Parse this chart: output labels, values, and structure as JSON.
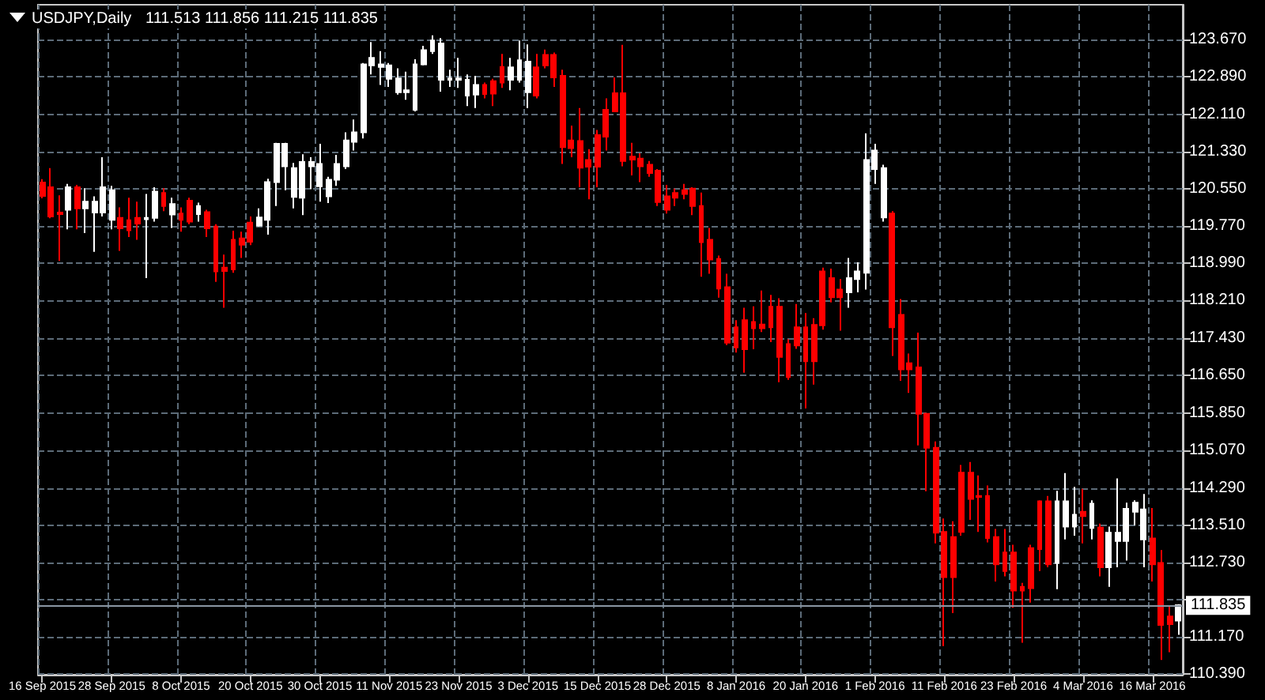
{
  "chart_data": {
    "type": "candlestick",
    "title": "USDJPY,Daily",
    "subtitle": "111.513 111.856 111.215 111.835",
    "categories": [
      "16 Sep 2015",
      null,
      null,
      null,
      null,
      null,
      null,
      null,
      "28 Sep 2015",
      null,
      null,
      null,
      null,
      null,
      null,
      null,
      "8 Oct 2015",
      null,
      null,
      null,
      null,
      null,
      null,
      null,
      "20 Oct 2015",
      null,
      null,
      null,
      null,
      null,
      null,
      null,
      "30 Oct 2015",
      null,
      null,
      null,
      null,
      null,
      null,
      null,
      "11 Nov 2015",
      null,
      null,
      null,
      null,
      null,
      null,
      null,
      "23 Nov 2015",
      null,
      null,
      null,
      null,
      null,
      null,
      null,
      "3 Dec 2015",
      null,
      null,
      null,
      null,
      null,
      null,
      null,
      "15 Dec 2015",
      null,
      null,
      null,
      null,
      null,
      null,
      null,
      "28 Dec 2015",
      null,
      null,
      null,
      null,
      null,
      null,
      null,
      "8 Jan 2016",
      null,
      null,
      null,
      null,
      null,
      null,
      null,
      "20 Jan 2016",
      null,
      null,
      null,
      null,
      null,
      null,
      null,
      "1 Feb 2016",
      null,
      null,
      null,
      null,
      null,
      null,
      null,
      "11 Feb 2016",
      null,
      null,
      null,
      null,
      null,
      null,
      null,
      "23 Feb 2016",
      null,
      null,
      null,
      null,
      null,
      null,
      null,
      "4 Mar 2016",
      null,
      null,
      null,
      null,
      null,
      null,
      null,
      "16 Mar 2016",
      null,
      null,
      null
    ],
    "ohlc": [
      [
        120.68,
        120.75,
        120.35,
        120.4
      ],
      [
        120.58,
        120.98,
        119.93,
        119.97
      ],
      [
        120.05,
        120.41,
        119.04,
        120.02
      ],
      [
        120.11,
        120.65,
        119.7,
        120.58
      ],
      [
        120.58,
        120.63,
        119.7,
        120.14
      ],
      [
        120.14,
        120.56,
        119.62,
        120.28
      ],
      [
        120.05,
        120.39,
        119.23,
        120.28
      ],
      [
        120.05,
        121.21,
        119.97,
        120.58
      ],
      [
        119.9,
        120.61,
        119.7,
        120.52
      ],
      [
        119.94,
        120.16,
        119.25,
        119.72
      ],
      [
        119.89,
        120.36,
        119.54,
        119.68
      ],
      [
        119.94,
        120.28,
        119.48,
        119.82
      ],
      [
        119.91,
        120.44,
        118.68,
        119.94
      ],
      [
        119.94,
        120.58,
        119.86,
        120.49
      ],
      [
        120.46,
        120.56,
        120.08,
        120.19
      ],
      [
        120.01,
        120.36,
        119.73,
        120.23
      ],
      [
        120.03,
        120.16,
        119.65,
        119.9
      ],
      [
        120.3,
        120.36,
        119.81,
        119.86
      ],
      [
        120.02,
        120.26,
        119.86,
        120.19
      ],
      [
        120.06,
        120.11,
        119.54,
        119.72
      ],
      [
        119.76,
        119.81,
        118.6,
        118.82
      ],
      [
        118.9,
        119.17,
        118.06,
        118.83
      ],
      [
        119.48,
        119.67,
        118.79,
        118.86
      ],
      [
        119.51,
        119.65,
        119.1,
        119.38
      ],
      [
        119.84,
        119.97,
        119.37,
        119.44
      ],
      [
        119.78,
        120.14,
        119.76,
        119.95
      ],
      [
        119.9,
        120.76,
        119.59,
        120.69
      ],
      [
        120.69,
        121.51,
        120.19,
        121.49
      ],
      [
        121.02,
        121.51,
        120.52,
        121.49
      ],
      [
        120.38,
        121.09,
        120.14,
        120.98
      ],
      [
        120.36,
        121.27,
        120.0,
        121.11
      ],
      [
        121.02,
        121.21,
        120.54,
        121.11
      ],
      [
        120.6,
        121.49,
        120.28,
        121.07
      ],
      [
        120.39,
        120.8,
        120.25,
        120.74
      ],
      [
        120.74,
        121.26,
        120.61,
        121.07
      ],
      [
        121.02,
        121.73,
        120.96,
        121.56
      ],
      [
        121.53,
        122.0,
        121.35,
        121.73
      ],
      [
        121.73,
        123.18,
        121.6,
        123.15
      ],
      [
        123.13,
        123.62,
        122.94,
        123.29
      ],
      [
        123.1,
        123.43,
        122.72,
        123.15
      ],
      [
        122.85,
        123.18,
        122.68,
        123.13
      ],
      [
        122.57,
        123.07,
        122.52,
        122.86
      ],
      [
        122.57,
        123.0,
        122.41,
        122.61
      ],
      [
        122.2,
        123.26,
        122.17,
        123.15
      ],
      [
        123.15,
        123.54,
        123.13,
        123.45
      ],
      [
        123.43,
        123.76,
        123.37,
        123.65
      ],
      [
        122.83,
        123.7,
        122.58,
        123.59
      ],
      [
        122.83,
        123.04,
        122.68,
        122.86
      ],
      [
        122.83,
        123.29,
        122.66,
        122.86
      ],
      [
        122.5,
        122.94,
        122.28,
        122.83
      ],
      [
        122.52,
        122.91,
        122.24,
        122.72
      ],
      [
        122.72,
        122.77,
        122.44,
        122.53
      ],
      [
        122.8,
        122.85,
        122.28,
        122.54
      ],
      [
        123.1,
        123.37,
        122.66,
        122.77
      ],
      [
        122.83,
        123.29,
        122.61,
        123.09
      ],
      [
        122.83,
        123.65,
        122.77,
        123.24
      ],
      [
        122.57,
        123.57,
        122.24,
        123.21
      ],
      [
        123.09,
        123.37,
        122.44,
        122.5
      ],
      [
        123.35,
        123.46,
        123.07,
        123.13
      ],
      [
        123.35,
        123.4,
        122.68,
        122.88
      ],
      [
        122.91,
        123.04,
        121.07,
        121.42
      ],
      [
        121.56,
        121.87,
        121.21,
        121.4
      ],
      [
        121.55,
        122.24,
        120.58,
        120.99
      ],
      [
        121.15,
        121.38,
        120.33,
        121.01
      ],
      [
        121.67,
        121.78,
        120.58,
        121.01
      ],
      [
        122.2,
        122.44,
        121.35,
        121.64
      ],
      [
        122.55,
        122.88,
        122.15,
        122.17
      ],
      [
        122.55,
        123.56,
        121.02,
        121.13
      ],
      [
        121.22,
        121.51,
        120.83,
        121.16
      ],
      [
        121.18,
        121.29,
        120.69,
        121.02
      ],
      [
        121.05,
        121.13,
        120.8,
        120.88
      ],
      [
        120.93,
        120.96,
        120.19,
        120.27
      ],
      [
        120.39,
        120.63,
        120.03,
        120.11
      ],
      [
        120.46,
        120.55,
        120.19,
        120.36
      ],
      [
        120.52,
        120.65,
        120.33,
        120.44
      ],
      [
        120.55,
        120.58,
        120.0,
        120.19
      ],
      [
        120.19,
        120.47,
        118.71,
        119.43
      ],
      [
        119.48,
        119.73,
        118.77,
        119.07
      ],
      [
        119.08,
        119.15,
        118.27,
        118.46
      ],
      [
        118.49,
        118.77,
        117.28,
        117.33
      ],
      [
        117.65,
        117.8,
        117.12,
        117.23
      ],
      [
        117.8,
        118.06,
        116.7,
        117.19
      ],
      [
        117.76,
        118.09,
        117.19,
        117.63
      ],
      [
        117.71,
        118.42,
        117.55,
        117.63
      ],
      [
        118.08,
        118.33,
        117.34,
        117.65
      ],
      [
        118.08,
        118.26,
        116.5,
        117.03
      ],
      [
        117.3,
        117.4,
        116.55,
        116.61
      ],
      [
        117.65,
        118.14,
        117.2,
        117.27
      ],
      [
        117.65,
        117.95,
        115.95,
        116.94
      ],
      [
        117.7,
        117.84,
        116.45,
        116.94
      ],
      [
        118.82,
        118.9,
        117.6,
        117.69
      ],
      [
        118.68,
        118.88,
        118.17,
        118.28
      ],
      [
        118.44,
        118.66,
        117.58,
        118.28
      ],
      [
        118.38,
        119.1,
        118.06,
        118.68
      ],
      [
        118.66,
        119.01,
        118.38,
        118.82
      ],
      [
        118.79,
        121.71,
        118.44,
        121.15
      ],
      [
        120.96,
        121.49,
        120.65,
        121.35
      ],
      [
        119.95,
        121.05,
        119.86,
        120.98
      ],
      [
        120.03,
        120.08,
        117.05,
        117.65
      ],
      [
        117.91,
        118.24,
        116.53,
        116.77
      ],
      [
        116.9,
        117.1,
        116.28,
        116.77
      ],
      [
        116.81,
        117.54,
        115.18,
        115.84
      ],
      [
        115.84,
        115.86,
        114.22,
        115.13
      ],
      [
        115.13,
        115.26,
        113.13,
        113.35
      ],
      [
        113.37,
        113.65,
        110.98,
        112.42
      ],
      [
        113.26,
        113.59,
        111.67,
        112.42
      ],
      [
        114.61,
        114.77,
        113.29,
        113.37
      ],
      [
        114.61,
        114.83,
        113.62,
        114.06
      ],
      [
        114.12,
        114.55,
        113.37,
        114.1
      ],
      [
        114.12,
        114.34,
        113.15,
        113.24
      ],
      [
        113.26,
        113.43,
        112.33,
        112.69
      ],
      [
        112.94,
        113.43,
        112.44,
        112.55
      ],
      [
        112.94,
        113.1,
        111.78,
        112.14
      ],
      [
        112.22,
        112.3,
        111.05,
        112.14
      ],
      [
        113.03,
        113.1,
        111.89,
        112.19
      ],
      [
        114.01,
        114.03,
        112.55,
        113.01
      ],
      [
        114.01,
        114.12,
        112.63,
        112.69
      ],
      [
        112.72,
        114.23,
        112.17,
        114.01
      ],
      [
        113.48,
        114.6,
        113.21,
        114.01
      ],
      [
        113.48,
        114.31,
        113.29,
        113.73
      ],
      [
        113.79,
        114.27,
        113.13,
        113.7
      ],
      [
        113.45,
        114.03,
        113.21,
        113.96
      ],
      [
        113.46,
        113.54,
        112.44,
        112.63
      ],
      [
        112.63,
        113.48,
        112.22,
        113.35
      ],
      [
        113.18,
        114.49,
        112.63,
        113.35
      ],
      [
        113.18,
        113.98,
        112.77,
        113.85
      ],
      [
        113.79,
        114.03,
        113.51,
        113.98
      ],
      [
        113.21,
        114.16,
        112.63,
        113.84
      ],
      [
        113.23,
        113.87,
        112.33,
        112.69
      ],
      [
        112.72,
        112.99,
        110.69,
        111.42
      ],
      [
        111.6,
        111.82,
        110.85,
        111.44
      ],
      [
        111.513,
        111.856,
        111.215,
        111.835
      ]
    ],
    "colors": [
      "#ff0000",
      "#ff0000",
      "#ff0000",
      "#ffffff",
      "#ff0000",
      "#ffffff",
      "#ffffff",
      "#ffffff",
      "#ffffff",
      "#ff0000",
      "#ff0000",
      "#ff0000",
      "#ffffff",
      "#ffffff",
      "#ff0000",
      "#ffffff",
      "#ff0000",
      "#ff0000",
      "#ffffff",
      "#ff0000",
      "#ff0000",
      "#ff0000",
      "#ff0000",
      "#ff0000",
      "#ff0000",
      "#ffffff",
      "#ffffff",
      "#ffffff",
      "#ffffff",
      "#ffffff",
      "#ffffff",
      "#ffffff",
      "#ffffff",
      "#ffffff",
      "#ffffff",
      "#ffffff",
      "#ffffff",
      "#ffffff",
      "#ffffff",
      "#ffffff",
      "#ffffff",
      "#ffffff",
      "#ffffff",
      "#ffffff",
      "#ffffff",
      "#ffffff",
      "#ffffff",
      "#ffffff",
      "#ffffff",
      "#ffffff",
      "#ffffff",
      "#ff0000",
      "#ff0000",
      "#ff0000",
      "#ffffff",
      "#ffffff",
      "#ffffff",
      "#ff0000",
      "#ff0000",
      "#ff0000",
      "#ff0000",
      "#ff0000",
      "#ff0000",
      "#ff0000",
      "#ff0000",
      "#ff0000",
      "#ff0000",
      "#ff0000",
      "#ff0000",
      "#ff0000",
      "#ff0000",
      "#ff0000",
      "#ff0000",
      "#ff0000",
      "#ff0000",
      "#ff0000",
      "#ff0000",
      "#ff0000",
      "#ff0000",
      "#ff0000",
      "#ff0000",
      "#ff0000",
      "#ff0000",
      "#ff0000",
      "#ff0000",
      "#ff0000",
      "#ff0000",
      "#ff0000",
      "#ff0000",
      "#ff0000",
      "#ff0000",
      "#ff0000",
      "#ff0000",
      "#ffffff",
      "#ffffff",
      "#ffffff",
      "#ffffff",
      "#ffffff",
      "#ff0000",
      "#ff0000",
      "#ff0000",
      "#ff0000",
      "#ff0000",
      "#ff0000",
      "#ff0000",
      "#ff0000",
      "#ff0000",
      "#ff0000",
      "#ff0000",
      "#ff0000",
      "#ff0000",
      "#ff0000",
      "#ff0000",
      "#ff0000",
      "#ff0000",
      "#ff0000",
      "#ff0000",
      "#ffffff",
      "#ffffff",
      "#ffffff",
      "#ff0000",
      "#ffffff",
      "#ff0000",
      "#ffffff",
      "#ffffff",
      "#ffffff",
      "#ffffff",
      "#ffffff",
      "#ff0000",
      "#ff0000",
      "#ff0000",
      "#ffffff"
    ],
    "ylim": [
      110.38,
      124.4
    ],
    "yticks": [
      {
        "value": 110.39,
        "label": "110.390"
      },
      {
        "value": 111.17,
        "label": "111.170"
      },
      {
        "value": 111.95,
        "label": null
      },
      {
        "value": 112.73,
        "label": "112.730"
      },
      {
        "value": 113.51,
        "label": "113.510"
      },
      {
        "value": 114.29,
        "label": "114.290"
      },
      {
        "value": 115.07,
        "label": "115.070"
      },
      {
        "value": 115.85,
        "label": "115.850"
      },
      {
        "value": 116.65,
        "label": "116.650"
      },
      {
        "value": 117.43,
        "label": "117.430"
      },
      {
        "value": 118.21,
        "label": "118.210"
      },
      {
        "value": 118.99,
        "label": "118.990"
      },
      {
        "value": 119.77,
        "label": "119.770"
      },
      {
        "value": 120.55,
        "label": "120.550"
      },
      {
        "value": 121.33,
        "label": "121.330"
      },
      {
        "value": 122.11,
        "label": "122.110"
      },
      {
        "value": 122.89,
        "label": "122.890"
      },
      {
        "value": 123.67,
        "label": "123.670"
      }
    ],
    "ref_lines": [
      {
        "axis": "y",
        "value": 111.835,
        "label": "111.835",
        "color": "#8a96a3"
      }
    ],
    "grid": true
  }
}
